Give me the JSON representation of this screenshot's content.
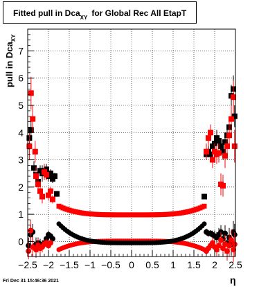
{
  "title": {
    "prefix": "Fitted pull in Dca",
    "subscript": "XY",
    "suffix": "for Global Rec All EtapT"
  },
  "footer": "Fri Dec 31 15:46:36 2021",
  "chart_data": {
    "type": "scatter",
    "xlabel": "η",
    "ylabel": "pull in Dca",
    "ylabel_subscript": "XY",
    "xlim": [
      -2.5,
      2.5
    ],
    "ylim": [
      -0.55,
      7.8
    ],
    "grid": true,
    "x_ticks": [
      {
        "v": -2.5,
        "label": "−2.5"
      },
      {
        "v": -2,
        "label": "−2"
      },
      {
        "v": -1.5,
        "label": "−1.5"
      },
      {
        "v": -1,
        "label": "−1"
      },
      {
        "v": -0.5,
        "label": "−0.5"
      },
      {
        "v": 0,
        "label": "0"
      },
      {
        "v": 0.5,
        "label": "0.5"
      },
      {
        "v": 1,
        "label": "1"
      },
      {
        "v": 1.5,
        "label": "1.5"
      },
      {
        "v": 2,
        "label": "2"
      },
      {
        "v": 2.5,
        "label": "2.5"
      }
    ],
    "y_ticks": [
      {
        "v": 0,
        "label": "0"
      },
      {
        "v": 1,
        "label": "1"
      },
      {
        "v": 2,
        "label": "2"
      },
      {
        "v": 3,
        "label": "3"
      },
      {
        "v": 4,
        "label": "4"
      },
      {
        "v": 5,
        "label": "5"
      },
      {
        "v": 6,
        "label": "6"
      },
      {
        "v": 7,
        "label": "7"
      }
    ],
    "series": [
      {
        "color": "#000000",
        "marker": "square",
        "points": [
          [
            -2.46,
            3.8,
            0.2
          ],
          [
            -2.42,
            4.1,
            0.4
          ],
          [
            -2.35,
            2.7,
            0.25
          ],
          [
            -2.3,
            2.45,
            0.3
          ],
          [
            -2.25,
            2.2,
            0.3
          ],
          [
            -2.2,
            2.6,
            0.2
          ],
          [
            -2.15,
            2.5,
            0.3
          ],
          [
            -2.1,
            2.6,
            0.2
          ],
          [
            -2.05,
            2.65,
            0.2
          ],
          [
            -2.0,
            2.4,
            0.2
          ],
          [
            -1.95,
            2.5,
            0.15
          ],
          [
            -1.9,
            2.3,
            0.15
          ],
          [
            -1.85,
            2.4,
            0.12
          ],
          [
            -1.8,
            1.75,
            0.1
          ],
          [
            1.75,
            1.65,
            0.1
          ],
          [
            1.8,
            3.2,
            0.2
          ],
          [
            1.85,
            3.3,
            0.2
          ],
          [
            1.9,
            3.2,
            0.2
          ],
          [
            1.95,
            3.5,
            0.2
          ],
          [
            2.0,
            3.6,
            0.3
          ],
          [
            2.05,
            3.8,
            0.3
          ],
          [
            2.1,
            3.7,
            0.2
          ],
          [
            2.15,
            3.5,
            0.25
          ],
          [
            2.2,
            3.3,
            0.3
          ],
          [
            2.25,
            3.65,
            0.35
          ],
          [
            2.3,
            3.9,
            0.35
          ],
          [
            2.35,
            4.2,
            0.4
          ],
          [
            2.4,
            5.35,
            0.4
          ],
          [
            2.45,
            5.6,
            0.5
          ],
          [
            2.48,
            4.6,
            0.4
          ]
        ]
      },
      {
        "color": "#000000",
        "marker": "circle",
        "points": [
          [
            -2.48,
            -0.15,
            0.3
          ],
          [
            -2.43,
            0.25,
            0.35
          ],
          [
            -2.38,
            0.35,
            0.3
          ],
          [
            -2.3,
            -0.1,
            0.25
          ],
          [
            -2.25,
            -0.05,
            0.2
          ],
          [
            -2.2,
            -0.1,
            0.2
          ],
          [
            -2.15,
            -0.15,
            0.2
          ],
          [
            -2.1,
            -0.05,
            0.2
          ],
          [
            -2.05,
            0.1,
            0.15
          ],
          [
            -2.0,
            0.25,
            0.15
          ],
          [
            -1.95,
            0.2,
            0.12
          ],
          [
            -1.9,
            0.1,
            0.1
          ],
          [
            1.8,
            0.35,
            0.12
          ],
          [
            1.85,
            0.3,
            0.12
          ],
          [
            1.9,
            0.3,
            0.12
          ],
          [
            1.95,
            0.25,
            0.15
          ],
          [
            2.0,
            0.2,
            0.2
          ],
          [
            2.05,
            0.15,
            0.2
          ],
          [
            2.1,
            0.25,
            0.25
          ],
          [
            2.15,
            0.35,
            0.25
          ],
          [
            2.2,
            0.1,
            0.3
          ],
          [
            2.25,
            0.3,
            0.3
          ],
          [
            2.3,
            -0.05,
            0.35
          ],
          [
            2.35,
            0.15,
            0.35
          ],
          [
            2.4,
            -0.1,
            0.4
          ],
          [
            2.45,
            0.35,
            0.4
          ],
          [
            2.48,
            0.25,
            0.4
          ]
        ]
      },
      {
        "color": "#ff0000",
        "marker": "square",
        "points": [
          [
            -2.46,
            3.5,
            0.5
          ],
          [
            -2.42,
            5.45,
            0.6
          ],
          [
            -2.38,
            4.5,
            0.5
          ],
          [
            -2.32,
            3.3,
            0.4
          ],
          [
            -2.3,
            2.4,
            0.35
          ],
          [
            -2.25,
            2.1,
            0.3
          ],
          [
            -2.2,
            1.85,
            0.3
          ],
          [
            -2.15,
            1.65,
            0.25
          ],
          [
            -2.1,
            2.55,
            0.3
          ],
          [
            -2.05,
            2.45,
            0.2
          ],
          [
            -2.0,
            1.7,
            0.2
          ],
          [
            -1.95,
            1.85,
            0.15
          ],
          [
            -1.9,
            1.55,
            0.15
          ],
          [
            1.8,
            3.3,
            0.3
          ],
          [
            1.85,
            3.8,
            0.3
          ],
          [
            1.9,
            4.0,
            0.3
          ],
          [
            1.95,
            3.0,
            0.3
          ],
          [
            2.0,
            3.3,
            0.3
          ],
          [
            2.05,
            3.2,
            0.35
          ],
          [
            2.1,
            3.25,
            0.35
          ],
          [
            2.15,
            2.1,
            0.4
          ],
          [
            2.2,
            2.05,
            0.4
          ],
          [
            2.25,
            3.15,
            0.45
          ],
          [
            2.3,
            3.5,
            0.5
          ],
          [
            2.35,
            3.9,
            0.5
          ],
          [
            2.4,
            4.5,
            0.5
          ],
          [
            2.45,
            5.3,
            0.6
          ],
          [
            2.48,
            3.5,
            0.6
          ]
        ]
      },
      {
        "color": "#ff0000",
        "marker": "circle",
        "points": [
          [
            -2.48,
            -0.35,
            0.3
          ],
          [
            -2.43,
            0.4,
            0.4
          ],
          [
            -2.38,
            -0.2,
            0.35
          ],
          [
            -2.3,
            -0.3,
            0.3
          ],
          [
            -2.25,
            -0.15,
            0.25
          ],
          [
            -2.2,
            -0.25,
            0.2
          ],
          [
            -2.15,
            -0.2,
            0.2
          ],
          [
            -2.1,
            -0.1,
            0.15
          ],
          [
            -2.05,
            -0.05,
            0.15
          ],
          [
            -2.0,
            -0.15,
            0.12
          ],
          [
            -1.95,
            -0.05,
            0.1
          ],
          [
            1.8,
            -0.35,
            0.15
          ],
          [
            1.85,
            -0.25,
            0.15
          ],
          [
            1.9,
            -0.15,
            0.15
          ],
          [
            1.95,
            -0.05,
            0.2
          ],
          [
            2.0,
            -0.2,
            0.2
          ],
          [
            2.05,
            -0.3,
            0.25
          ],
          [
            2.1,
            -0.15,
            0.25
          ],
          [
            2.15,
            0.05,
            0.3
          ],
          [
            2.2,
            -0.25,
            0.3
          ],
          [
            2.25,
            -0.1,
            0.35
          ],
          [
            2.3,
            -0.35,
            0.35
          ],
          [
            2.35,
            -0.15,
            0.4
          ],
          [
            2.4,
            0.05,
            0.4
          ],
          [
            2.45,
            -0.3,
            0.45
          ],
          [
            2.48,
            -0.1,
            0.45
          ]
        ]
      }
    ],
    "central_bands": [
      {
        "name": "red-upper",
        "color": "#ff0000",
        "marker": "square",
        "x_range": [
          -1.75,
          1.75
        ],
        "edge": 1.3,
        "center": 0.98
      },
      {
        "name": "red-lower",
        "color": "#ff0000",
        "marker": "circle",
        "x_range": [
          -1.75,
          1.75
        ],
        "edge": -0.3,
        "center": 0.02
      },
      {
        "name": "black-lower",
        "color": "#000000",
        "marker": "circle",
        "x_range": [
          -1.75,
          1.75
        ],
        "edge": 0.65,
        "center": -0.05
      }
    ]
  }
}
